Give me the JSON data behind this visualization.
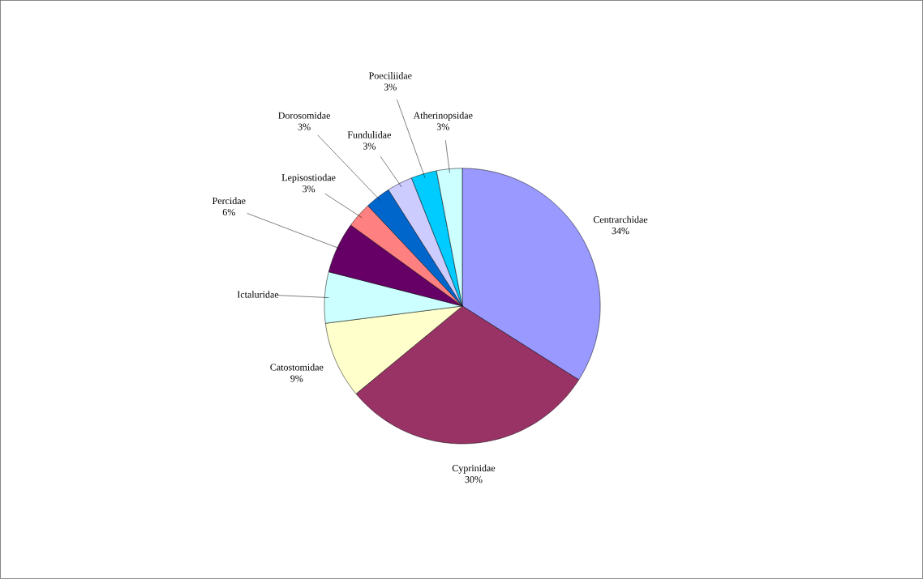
{
  "chart_data": {
    "type": "pie",
    "categories": [
      "Centrarchidae",
      "Cyprinidae",
      "Catostomidae",
      "Ictaluridae",
      "Percidae",
      "Lepisostiodae",
      "Dorosomidae",
      "Fundulidae",
      "Poeciliidae",
      "Atherinopsidae"
    ],
    "values": [
      34,
      30,
      9,
      6,
      6,
      3,
      3,
      3,
      3,
      3
    ],
    "value_labels": [
      "34%",
      "30%",
      "9%",
      null,
      "6%",
      "3%",
      "3%",
      "3%",
      "3%",
      "3%"
    ],
    "colors": [
      "#9999ff",
      "#993366",
      "#ffffcc",
      "#ccffff",
      "#660066",
      "#ff8080",
      "#0066cc",
      "#ccccff",
      "#00ccff",
      "#ccffff"
    ]
  }
}
